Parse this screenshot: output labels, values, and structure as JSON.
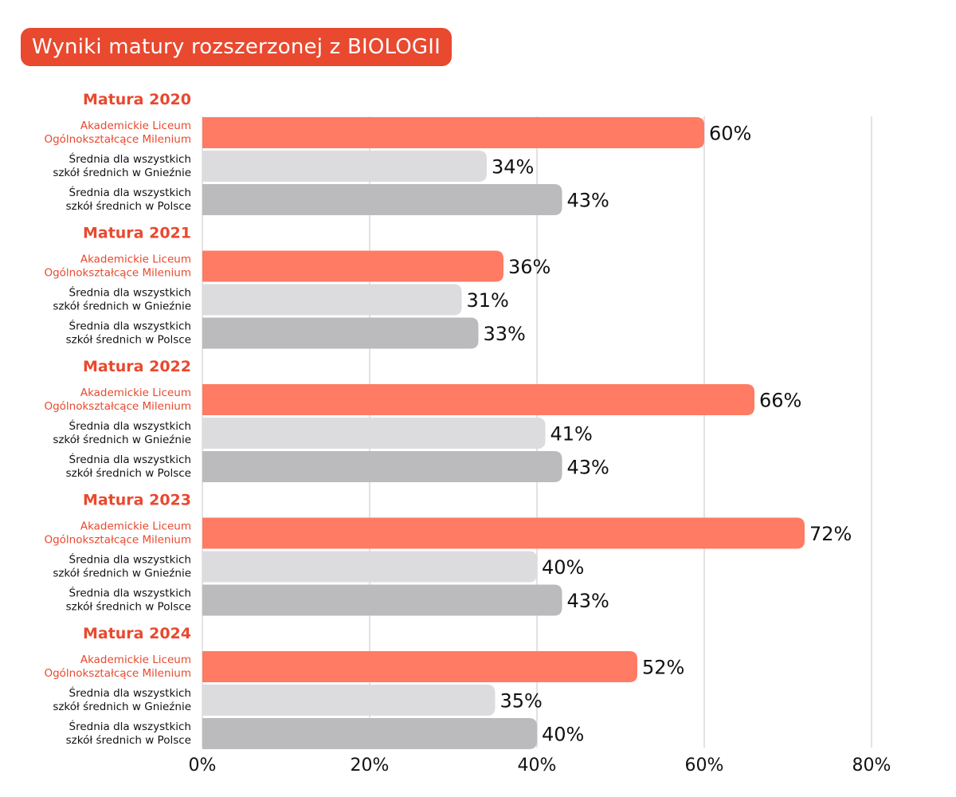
{
  "colors": {
    "accent": "#e8492f",
    "school_bar": "#ff7b63",
    "gniezno_bar": "#dcdbde",
    "polska_bar": "#bbbabd",
    "gridline": "#d9d9d9"
  },
  "chart_data": {
    "type": "bar",
    "orientation": "horizontal",
    "title": "Wyniki matury rozszerzonej z BIOLOGII",
    "xlim": [
      0,
      80
    ],
    "x_ticks": [
      0,
      20,
      40,
      60,
      80
    ],
    "x_tick_labels": [
      "0%",
      "20%",
      "40%",
      "60%",
      "80%"
    ],
    "series": [
      {
        "key": "school",
        "name": "Akademickie Liceum Ogólnokształcące Milenium",
        "label_lines": [
          "Akademickie Liceum",
          "Ogólnokształcące Milenium"
        ]
      },
      {
        "key": "gniezno",
        "name": "Średnia dla wszystkich szkół średnich w Gnieźnie",
        "label_lines": [
          "Średnia dla wszystkich",
          "szkół średnich w Gnieźnie"
        ]
      },
      {
        "key": "polska",
        "name": "Średnia dla wszystkich szkół średnich w Polsce",
        "label_lines": [
          "Średnia dla wszystkich",
          "szkół średnich w Polsce"
        ]
      }
    ],
    "groups": [
      {
        "label": "Matura 2020",
        "values": [
          60,
          34,
          43
        ],
        "value_labels": [
          "60%",
          "34%",
          "43%"
        ]
      },
      {
        "label": "Matura 2021",
        "values": [
          36,
          31,
          33
        ],
        "value_labels": [
          "36%",
          "31%",
          "33%"
        ]
      },
      {
        "label": "Matura 2022",
        "values": [
          66,
          41,
          43
        ],
        "value_labels": [
          "66%",
          "41%",
          "43%"
        ]
      },
      {
        "label": "Matura 2023",
        "values": [
          72,
          40,
          43
        ],
        "value_labels": [
          "72%",
          "40%",
          "43%"
        ]
      },
      {
        "label": "Matura 2024",
        "values": [
          52,
          35,
          40
        ],
        "value_labels": [
          "52%",
          "35%",
          "40%"
        ]
      }
    ]
  }
}
